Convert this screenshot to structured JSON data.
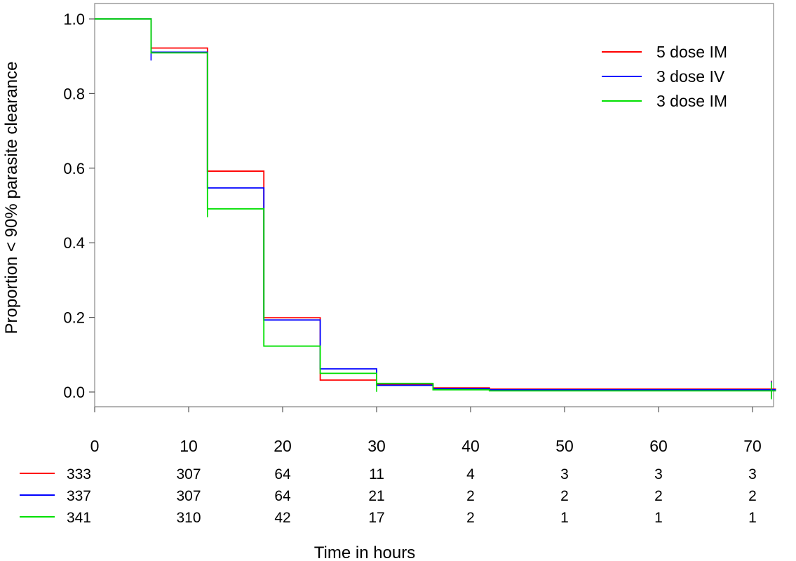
{
  "chart_data": {
    "type": "line",
    "step": true,
    "xlabel": "Time in hours",
    "ylabel": "Proportion < 90% parasite clearance",
    "xlim": [
      0,
      73
    ],
    "ylim": [
      0,
      1
    ],
    "x_ticks": [
      0,
      10,
      20,
      30,
      40,
      50,
      60,
      70
    ],
    "y_ticks": [
      0.0,
      0.2,
      0.4,
      0.6,
      0.8,
      1.0
    ],
    "x_tick_labels": [
      "0",
      "10",
      "20",
      "30",
      "40",
      "50",
      "60",
      "70"
    ],
    "y_tick_labels": [
      "0.0",
      "0.2",
      "0.4",
      "0.6",
      "0.8",
      "1.0"
    ],
    "legend_position": "top-right",
    "series": [
      {
        "name": "5 dose IM",
        "color": "#ff0000",
        "steps": [
          [
            0,
            1.0
          ],
          [
            6,
            0.922
          ],
          [
            12,
            0.592
          ],
          [
            18,
            0.199
          ],
          [
            24,
            0.032
          ],
          [
            30,
            0.021
          ],
          [
            36,
            0.011
          ],
          [
            42,
            0.008
          ],
          [
            72.5,
            0.008
          ]
        ],
        "censor_times": [
          72
        ]
      },
      {
        "name": "3 dose IV",
        "color": "#0000ff",
        "steps": [
          [
            0,
            1.0
          ],
          [
            6,
            0.911
          ],
          [
            12,
            0.547
          ],
          [
            18,
            0.193
          ],
          [
            24,
            0.062
          ],
          [
            30,
            0.018
          ],
          [
            36,
            0.009
          ],
          [
            42,
            0.006
          ],
          [
            72.5,
            0.006
          ]
        ],
        "censor_times": [
          6,
          72
        ]
      },
      {
        "name": "3 dose IM",
        "color": "#00e000",
        "steps": [
          [
            0,
            1.0
          ],
          [
            6,
            0.909
          ],
          [
            12,
            0.491
          ],
          [
            18,
            0.123
          ],
          [
            24,
            0.05
          ],
          [
            30,
            0.023
          ],
          [
            36,
            0.006
          ],
          [
            42,
            0.003
          ],
          [
            72.5,
            0.003
          ]
        ],
        "censor_times": [
          12,
          30,
          72
        ]
      }
    ],
    "risk_table": {
      "times": [
        0,
        10,
        20,
        30,
        40,
        50,
        60,
        70
      ],
      "rows": [
        {
          "series": "5 dose IM",
          "color": "#ff0000",
          "values": [
            "333",
            "307",
            "64",
            "11",
            "4",
            "3",
            "3",
            "3"
          ]
        },
        {
          "series": "3 dose IV",
          "color": "#0000ff",
          "values": [
            "337",
            "307",
            "64",
            "21",
            "2",
            "2",
            "2",
            "2"
          ]
        },
        {
          "series": "3 dose IM",
          "color": "#00e000",
          "values": [
            "341",
            "310",
            "42",
            "17",
            "2",
            "1",
            "1",
            "1"
          ]
        }
      ]
    }
  }
}
